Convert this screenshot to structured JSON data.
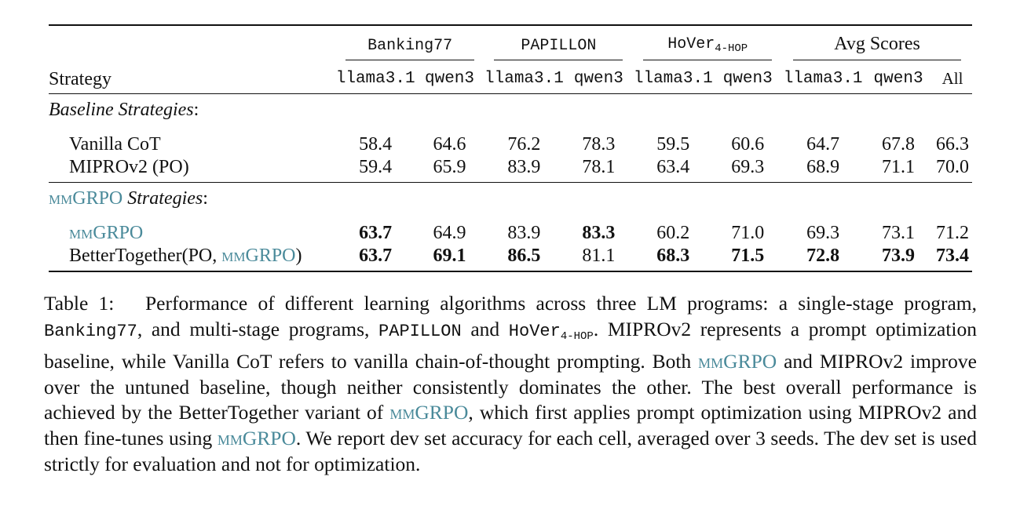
{
  "table": {
    "strategy_header": "Strategy",
    "groups": [
      {
        "label": "Banking77",
        "mono": true,
        "sub": ""
      },
      {
        "label": "PAPILLON",
        "mono": true,
        "sub": ""
      },
      {
        "label": "HoVer",
        "mono": true,
        "sub": "4-HOP"
      },
      {
        "label": "Avg Scores",
        "mono": false,
        "sub": ""
      }
    ],
    "subheaders": [
      "llama3.1",
      "qwen3",
      "llama3.1",
      "qwen3",
      "llama3.1",
      "qwen3",
      "llama3.1",
      "qwen3",
      "All"
    ],
    "sections": [
      {
        "title_italic": "Baseline Strategies",
        "title_prefix_sc": "",
        "title_suffix": ":",
        "rows": [
          {
            "label": "Vanilla CoT",
            "label_sc": "",
            "label_after": "",
            "values": [
              "58.4",
              "64.6",
              "76.2",
              "78.3",
              "59.5",
              "60.6",
              "64.7",
              "67.8",
              "66.3"
            ],
            "bold": [
              false,
              false,
              false,
              false,
              false,
              false,
              false,
              false,
              false
            ]
          },
          {
            "label": "MIPROv2 (PO)",
            "label_sc": "",
            "label_after": "",
            "values": [
              "59.4",
              "65.9",
              "83.9",
              "78.1",
              "63.4",
              "69.3",
              "68.9",
              "71.1",
              "70.0"
            ],
            "bold": [
              false,
              false,
              false,
              false,
              false,
              false,
              false,
              false,
              false
            ]
          }
        ]
      },
      {
        "title_italic": "Strategies",
        "title_prefix_sc": "mmGRPO",
        "title_suffix": ":",
        "rows": [
          {
            "label": "",
            "label_sc": "mmGRPO",
            "label_after": "",
            "values": [
              "63.7",
              "64.9",
              "83.9",
              "83.3",
              "60.2",
              "71.0",
              "69.3",
              "73.1",
              "71.2"
            ],
            "bold": [
              true,
              false,
              false,
              true,
              false,
              false,
              false,
              false,
              false
            ]
          },
          {
            "label": "BetterTogether(PO, ",
            "label_sc": "mmGRPO",
            "label_after": ")",
            "values": [
              "63.7",
              "69.1",
              "86.5",
              "81.1",
              "68.3",
              "71.5",
              "72.8",
              "73.9",
              "73.4"
            ],
            "bold": [
              true,
              true,
              true,
              false,
              true,
              true,
              true,
              true,
              true
            ]
          }
        ]
      }
    ]
  },
  "caption": {
    "label": "Table 1:",
    "t1": "Performance of different learning algorithms across three LM programs: a single-stage program, ",
    "m1": "Banking77",
    "t2": ", and multi-stage programs, ",
    "m2": "PAPILLON",
    "t3": " and ",
    "m3": "HoVer",
    "m3_sub": "4-HOP",
    "t4": ". MIPROv2 represents a prompt optimization baseline, while Vanilla CoT refers to vanilla chain-of-thought prompting. Both ",
    "s1": "mmGRPO",
    "t5": " and MIPROv2 improve over the untuned baseline, though neither consistently dominates the other. The best overall performance is achieved by the BetterTogether variant of ",
    "s2": "mmGRPO",
    "t6": ", which first applies prompt optimization using MIPROv2 and then fine-tunes using ",
    "s3": "mmGRPO",
    "t7": ". We report dev set accuracy for each cell, averaged over 3 seeds. The dev set is used strictly for evaluation and not for optimization."
  },
  "colors": {
    "accent": "#4a8a9a",
    "text": "#111111"
  }
}
